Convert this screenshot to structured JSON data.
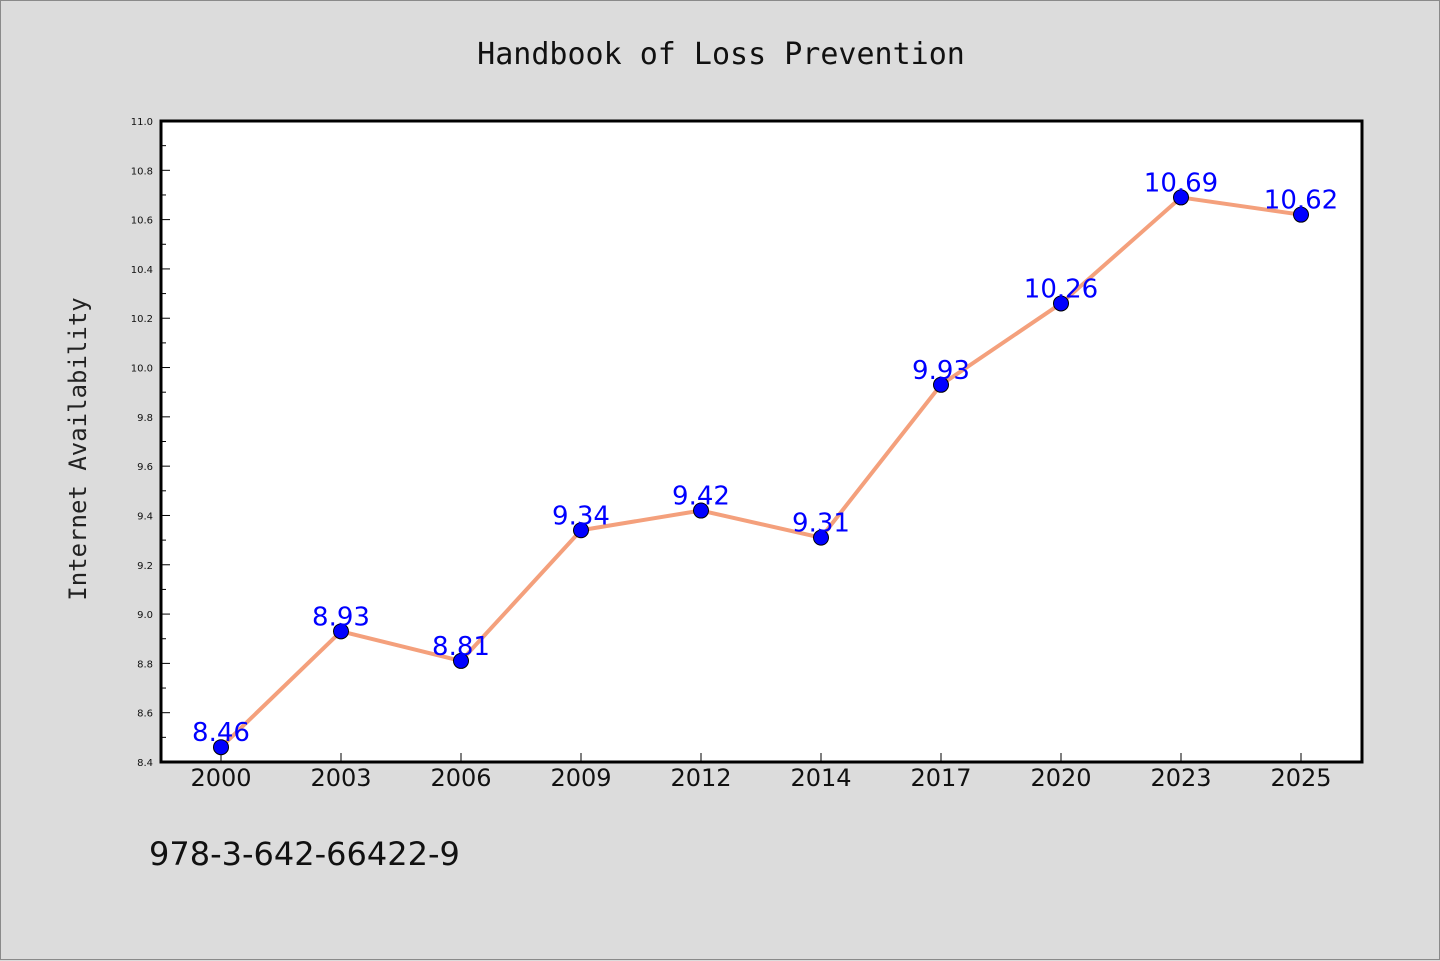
{
  "chart_data": {
    "type": "line",
    "title": "Handbook of Loss Prevention",
    "xlabel": "",
    "ylabel": "Internet Availability",
    "categories": [
      "2000",
      "2003",
      "2006",
      "2009",
      "2012",
      "2014",
      "2017",
      "2020",
      "2023",
      "2025"
    ],
    "series": [
      {
        "values": [
          8.46,
          8.93,
          8.81,
          9.34,
          9.42,
          9.31,
          9.93,
          10.26,
          10.69,
          10.62
        ],
        "data_labels": [
          "8.46",
          "8.93",
          "8.81",
          "9.34",
          "9.42",
          "9.31",
          "9.93",
          "10.26",
          "10.69",
          "10.62"
        ],
        "line_color": "#f4a07c",
        "marker_color": "#0000ff"
      }
    ],
    "ylim": [
      8.4,
      11.0
    ],
    "yticks": [
      "8.4",
      "8.6",
      "8.8",
      "9.0",
      "9.2",
      "9.4",
      "9.6",
      "9.8",
      "10.0",
      "10.2",
      "10.4",
      "10.6",
      "10.8",
      "11.0"
    ],
    "grid": false,
    "legend": "none"
  },
  "footer": {
    "identifier": "978-3-642-66422-9"
  },
  "colors": {
    "background": "#dcdcdc",
    "plot_background": "#ffffff",
    "line": "#f4a07c",
    "markers": "#0000ff",
    "data_labels": "#0000ff"
  }
}
